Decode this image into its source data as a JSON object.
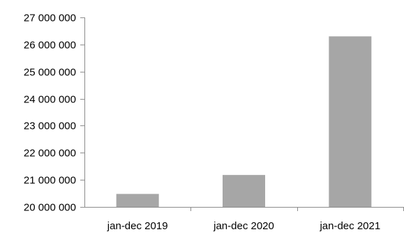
{
  "chart_data": {
    "type": "bar",
    "title": "",
    "xlabel": "",
    "ylabel": "",
    "categories": [
      "jan-dec 2019",
      "jan-dec 2020",
      "jan-dec 2021"
    ],
    "values": [
      20480000,
      21180000,
      26300000
    ],
    "ylim": [
      20000000,
      27000000
    ],
    "yticks": [
      20000000,
      21000000,
      22000000,
      23000000,
      24000000,
      25000000,
      26000000,
      27000000
    ],
    "ytick_labels": [
      "20 000 000",
      "21 000 000",
      "22 000 000",
      "23 000 000",
      "24 000 000",
      "25 000 000",
      "26 000 000",
      "27 000 000"
    ],
    "grid": false,
    "legend": "none",
    "bar_color": "#a6a6a6",
    "axis_color": "#8c8c8c"
  }
}
